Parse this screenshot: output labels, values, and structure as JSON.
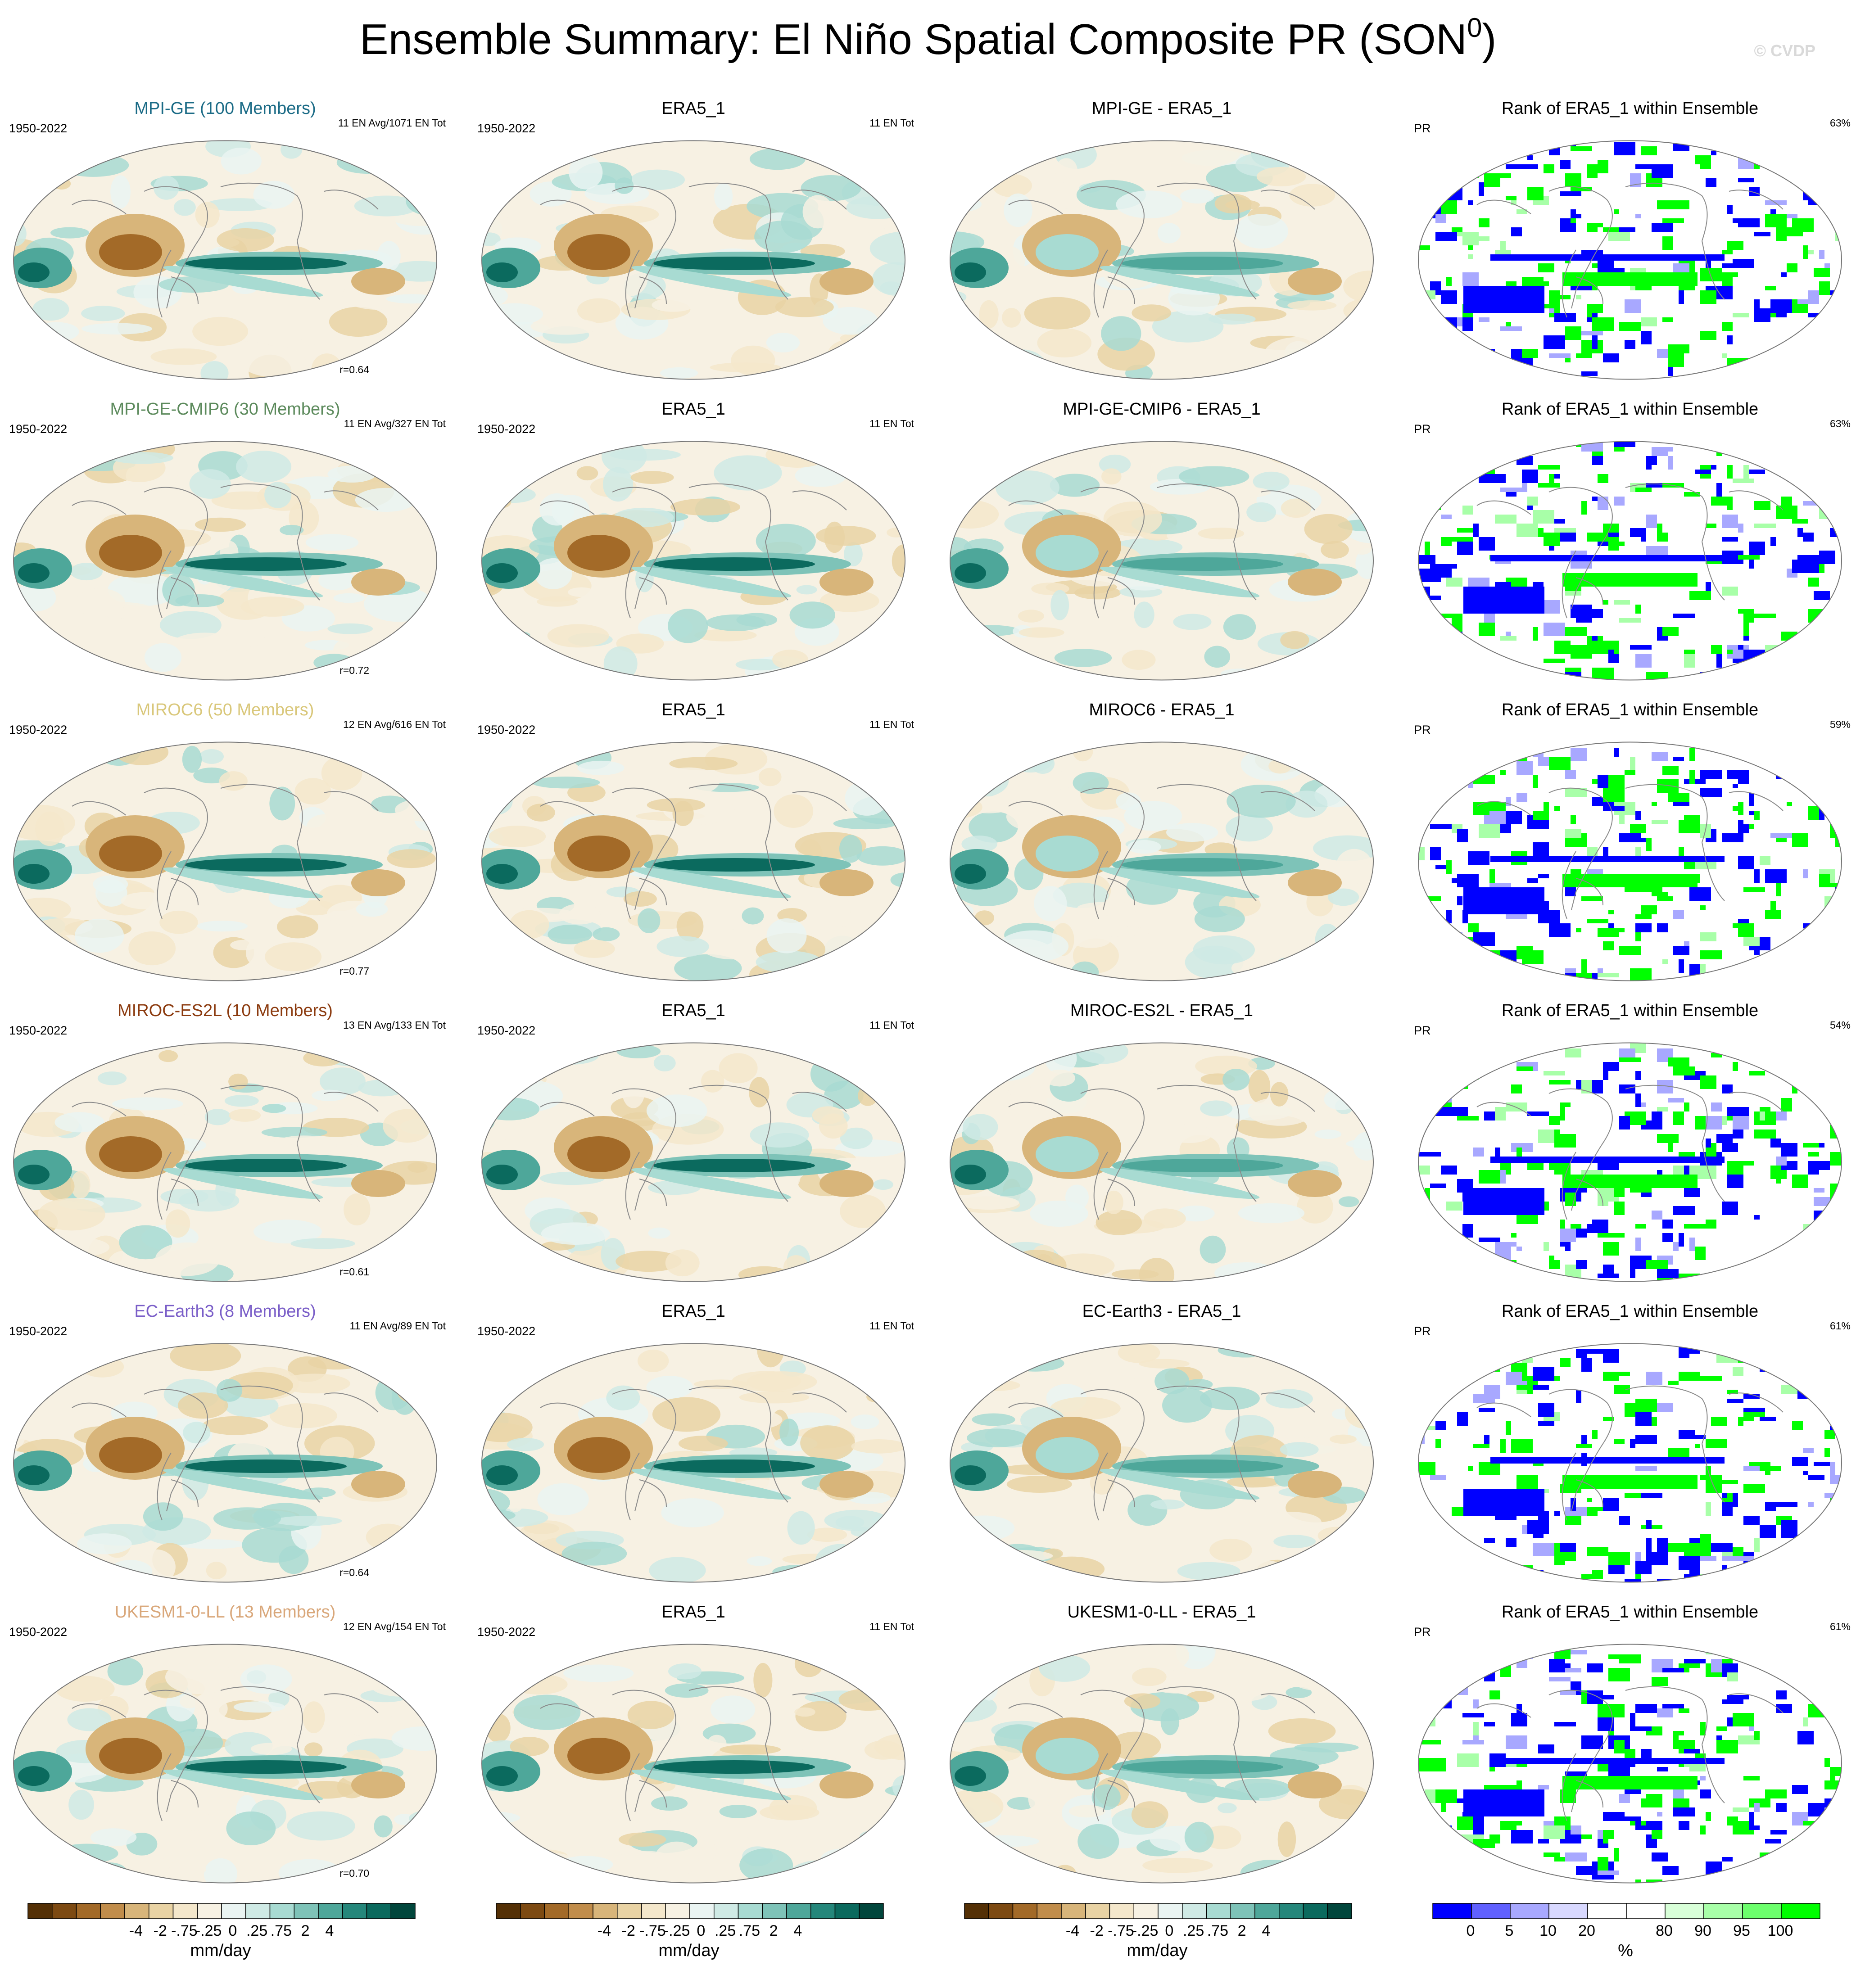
{
  "title_main": "Ensemble Summary: El Niño Spatial Composite PR (SON",
  "title_sup": "0",
  "title_close": ")",
  "watermark": "© CVDP",
  "colors": {
    "div_scale": [
      "#543005",
      "#7d4a12",
      "#a36a28",
      "#c18d4b",
      "#d8b57a",
      "#e9d3a4",
      "#f4e7cb",
      "#f7f1e3",
      "#eaf4f2",
      "#cfeae5",
      "#a8dbd2",
      "#7ec3b8",
      "#4ea79a",
      "#25877b",
      "#0b6a5e",
      "#01463c"
    ],
    "rank_scale": [
      "#0000ff",
      "#6060ff",
      "#a8a8ff",
      "#d8d8ff",
      "#ffffff",
      "#ffffff",
      "#d8ffd8",
      "#a8ffa8",
      "#6cff6c",
      "#00ff00"
    ],
    "coast": "#8a8a8a"
  },
  "rows": [
    {
      "ens": {
        "title": "MPI-GE (100 Members)",
        "color": "#1b6b86",
        "years": "1950-2022",
        "events": "11 EN Avg/1071 EN Tot",
        "corr": "r=0.64"
      },
      "obs": {
        "title": "ERA5_1",
        "years": "1950-2022",
        "events": "11 EN Tot"
      },
      "diff": {
        "title": "MPI-GE - ERA5_1"
      },
      "rank": {
        "title": "Rank of ERA5_1 within Ensemble",
        "var": "PR",
        "pct": "63%"
      }
    },
    {
      "ens": {
        "title": "MPI-GE-CMIP6 (30 Members)",
        "color": "#5c8a5c",
        "years": "1950-2022",
        "events": "11 EN Avg/327 EN Tot",
        "corr": "r=0.72"
      },
      "obs": {
        "title": "ERA5_1",
        "years": "1950-2022",
        "events": "11 EN Tot"
      },
      "diff": {
        "title": "MPI-GE-CMIP6 - ERA5_1"
      },
      "rank": {
        "title": "Rank of ERA5_1 within Ensemble",
        "var": "PR",
        "pct": "63%"
      }
    },
    {
      "ens": {
        "title": "MIROC6 (50 Members)",
        "color": "#d9c77a",
        "years": "1950-2022",
        "events": "12 EN Avg/616 EN Tot",
        "corr": "r=0.77"
      },
      "obs": {
        "title": "ERA5_1",
        "years": "1950-2022",
        "events": "11 EN Tot"
      },
      "diff": {
        "title": "MIROC6 - ERA5_1"
      },
      "rank": {
        "title": "Rank of ERA5_1 within Ensemble",
        "var": "PR",
        "pct": "59%"
      }
    },
    {
      "ens": {
        "title": "MIROC-ES2L (10 Members)",
        "color": "#8b3a0e",
        "years": "1950-2022",
        "events": "13 EN Avg/133 EN Tot",
        "corr": "r=0.61"
      },
      "obs": {
        "title": "ERA5_1",
        "years": "1950-2022",
        "events": "11 EN Tot"
      },
      "diff": {
        "title": "MIROC-ES2L - ERA5_1"
      },
      "rank": {
        "title": "Rank of ERA5_1 within Ensemble",
        "var": "PR",
        "pct": "54%"
      }
    },
    {
      "ens": {
        "title": "EC-Earth3 (8 Members)",
        "color": "#7a5ec8",
        "years": "1950-2022",
        "events": "11 EN Avg/89 EN Tot",
        "corr": "r=0.64"
      },
      "obs": {
        "title": "ERA5_1",
        "years": "1950-2022",
        "events": "11 EN Tot"
      },
      "diff": {
        "title": "EC-Earth3 - ERA5_1"
      },
      "rank": {
        "title": "Rank of ERA5_1 within Ensemble",
        "var": "PR",
        "pct": "61%"
      }
    },
    {
      "ens": {
        "title": "UKESM1-0-LL (13 Members)",
        "color": "#d9a77a",
        "years": "1950-2022",
        "events": "12 EN Avg/154 EN Tot",
        "corr": "r=0.70"
      },
      "obs": {
        "title": "ERA5_1",
        "years": "1950-2022",
        "events": "11 EN Tot"
      },
      "diff": {
        "title": "UKESM1-0-LL - ERA5_1"
      },
      "rank": {
        "title": "Rank of ERA5_1 within Ensemble",
        "var": "PR",
        "pct": "61%"
      }
    }
  ],
  "colorbars": [
    {
      "ticks": [
        "-4",
        "-2",
        "-.75",
        "-.25",
        "0",
        ".25",
        ".75",
        "2",
        "4"
      ],
      "unit": "mm/day"
    },
    {
      "ticks": [
        "-4",
        "-2",
        "-.75",
        "-.25",
        "0",
        ".25",
        ".75",
        "2",
        "4"
      ],
      "unit": "mm/day"
    },
    {
      "ticks": [
        "-4",
        "-2",
        "-.75",
        "-.25",
        "0",
        ".25",
        ".75",
        "2",
        "4"
      ],
      "unit": "mm/day"
    },
    {
      "ticks": [
        "0",
        "5",
        "10",
        "20",
        "80",
        "90",
        "95",
        "100"
      ],
      "unit": "%"
    }
  ]
}
